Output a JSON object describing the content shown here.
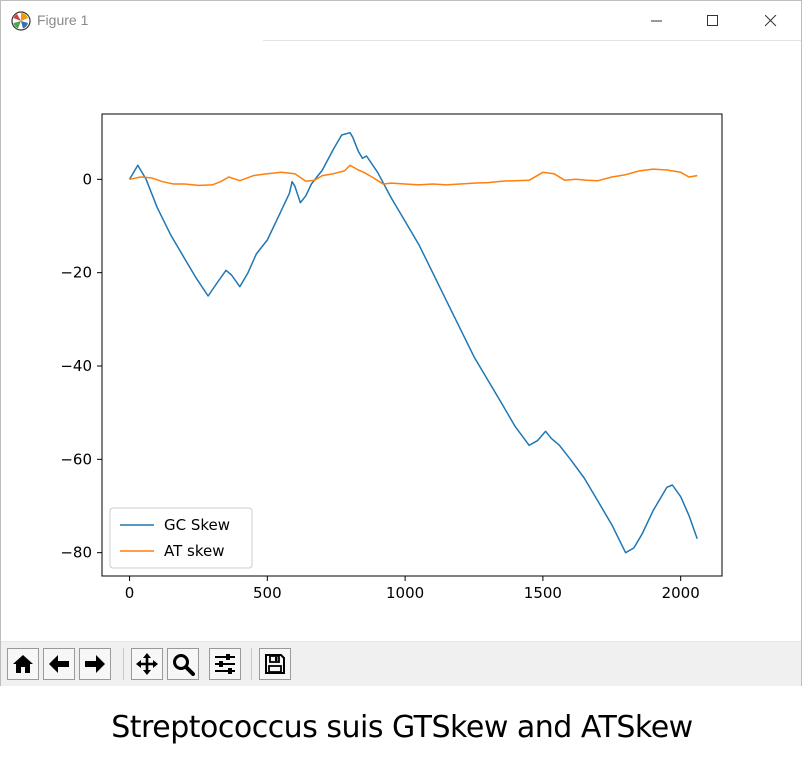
{
  "window": {
    "title": "Figure 1"
  },
  "toolbar": {
    "buttons": [
      {
        "name": "home",
        "icon": "home-icon"
      },
      {
        "name": "back",
        "icon": "arrow-left-icon"
      },
      {
        "name": "forward",
        "icon": "arrow-right-icon"
      },
      {
        "name": "pan",
        "icon": "move-icon"
      },
      {
        "name": "zoom",
        "icon": "zoom-icon"
      },
      {
        "name": "configure-subplots",
        "icon": "sliders-icon"
      },
      {
        "name": "save",
        "icon": "save-icon"
      }
    ]
  },
  "caption": "Streptococcus suis GTSkew and ATSkew",
  "chart_data": {
    "type": "line",
    "xlim": [
      -100,
      2150
    ],
    "ylim": [
      -85,
      14
    ],
    "xticks": [
      0,
      500,
      1000,
      1500,
      2000
    ],
    "yticks": [
      0,
      -20,
      -40,
      -60,
      -80
    ],
    "xtick_labels": [
      "0",
      "500",
      "1000",
      "1500",
      "2000"
    ],
    "ytick_labels": [
      "0",
      "−20",
      "−40",
      "−60",
      "−80"
    ],
    "grid": false,
    "legend_position": "lower-left",
    "series": [
      {
        "name": "GC Skew",
        "color": "#1f77b4",
        "points": [
          [
            0,
            0
          ],
          [
            30,
            3
          ],
          [
            60,
            0
          ],
          [
            100,
            -6
          ],
          [
            150,
            -12
          ],
          [
            200,
            -17
          ],
          [
            240,
            -21
          ],
          [
            285,
            -25
          ],
          [
            320,
            -22
          ],
          [
            350,
            -19.5
          ],
          [
            370,
            -20.5
          ],
          [
            400,
            -23
          ],
          [
            430,
            -20
          ],
          [
            460,
            -16
          ],
          [
            500,
            -13
          ],
          [
            540,
            -8
          ],
          [
            580,
            -3
          ],
          [
            590,
            -0.5
          ],
          [
            600,
            -1.5
          ],
          [
            620,
            -5
          ],
          [
            640,
            -3.5
          ],
          [
            660,
            -1
          ],
          [
            700,
            2
          ],
          [
            740,
            6.5
          ],
          [
            770,
            9.5
          ],
          [
            800,
            10
          ],
          [
            810,
            9
          ],
          [
            830,
            6
          ],
          [
            845,
            4.5
          ],
          [
            860,
            5
          ],
          [
            900,
            1.5
          ],
          [
            950,
            -4
          ],
          [
            1000,
            -9
          ],
          [
            1050,
            -14
          ],
          [
            1100,
            -20
          ],
          [
            1150,
            -26
          ],
          [
            1200,
            -32
          ],
          [
            1250,
            -38
          ],
          [
            1300,
            -43
          ],
          [
            1350,
            -48
          ],
          [
            1400,
            -53
          ],
          [
            1450,
            -57
          ],
          [
            1480,
            -56
          ],
          [
            1510,
            -54
          ],
          [
            1530,
            -55.5
          ],
          [
            1560,
            -57
          ],
          [
            1600,
            -60
          ],
          [
            1650,
            -64
          ],
          [
            1700,
            -69
          ],
          [
            1750,
            -74
          ],
          [
            1800,
            -80
          ],
          [
            1830,
            -79
          ],
          [
            1860,
            -76
          ],
          [
            1900,
            -71
          ],
          [
            1950,
            -66
          ],
          [
            1970,
            -65.5
          ],
          [
            2000,
            -68
          ],
          [
            2030,
            -72
          ],
          [
            2060,
            -77
          ]
        ]
      },
      {
        "name": "AT skew",
        "color": "#ff7f0e",
        "points": [
          [
            0,
            0
          ],
          [
            40,
            0.5
          ],
          [
            80,
            0.3
          ],
          [
            120,
            -0.5
          ],
          [
            160,
            -1
          ],
          [
            200,
            -1
          ],
          [
            250,
            -1.3
          ],
          [
            300,
            -1.2
          ],
          [
            330,
            -0.5
          ],
          [
            360,
            0.5
          ],
          [
            400,
            -0.3
          ],
          [
            450,
            0.8
          ],
          [
            500,
            1.2
          ],
          [
            550,
            1.5
          ],
          [
            600,
            1.2
          ],
          [
            640,
            -0.4
          ],
          [
            670,
            -0.2
          ],
          [
            700,
            0.8
          ],
          [
            740,
            1.2
          ],
          [
            780,
            1.8
          ],
          [
            800,
            3
          ],
          [
            830,
            2
          ],
          [
            850,
            1.5
          ],
          [
            880,
            0.5
          ],
          [
            920,
            -1
          ],
          [
            950,
            -0.8
          ],
          [
            1000,
            -1
          ],
          [
            1050,
            -1.2
          ],
          [
            1100,
            -1
          ],
          [
            1150,
            -1.2
          ],
          [
            1200,
            -1
          ],
          [
            1250,
            -0.8
          ],
          [
            1300,
            -0.7
          ],
          [
            1350,
            -0.4
          ],
          [
            1400,
            -0.3
          ],
          [
            1450,
            -0.2
          ],
          [
            1500,
            1.5
          ],
          [
            1540,
            1.2
          ],
          [
            1580,
            -0.2
          ],
          [
            1620,
            0
          ],
          [
            1660,
            -0.2
          ],
          [
            1700,
            -0.3
          ],
          [
            1750,
            0.5
          ],
          [
            1800,
            1
          ],
          [
            1850,
            1.8
          ],
          [
            1900,
            2.2
          ],
          [
            1950,
            2
          ],
          [
            2000,
            1.5
          ],
          [
            2030,
            0.5
          ],
          [
            2060,
            0.8
          ]
        ]
      }
    ]
  }
}
